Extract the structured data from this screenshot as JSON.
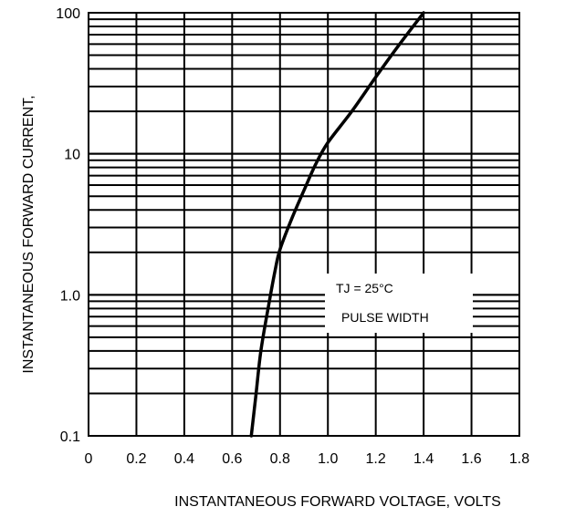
{
  "chart_data": {
    "type": "line",
    "title": "",
    "xlabel": "INSTANTANEOUS FORWARD VOLTAGE, VOLTS",
    "ylabel": "INSTANTANEOUS FORWARD CURRENT,",
    "xlim": [
      0,
      1.8
    ],
    "ylim": [
      0.1,
      100
    ],
    "y_scale": "log",
    "grid": true,
    "x_ticks": [
      {
        "value": 0,
        "label": "0"
      },
      {
        "value": 0.2,
        "label": "0.2"
      },
      {
        "value": 0.4,
        "label": "0.4"
      },
      {
        "value": 0.6,
        "label": "0.6"
      },
      {
        "value": 0.8,
        "label": "0.8"
      },
      {
        "value": 1.0,
        "label": "1.0"
      },
      {
        "value": 1.2,
        "label": "1.2"
      },
      {
        "value": 1.4,
        "label": "1.4"
      },
      {
        "value": 1.6,
        "label": "1.6"
      },
      {
        "value": 1.8,
        "label": "1.8"
      }
    ],
    "y_ticks": [
      {
        "value": 0.1,
        "label": "0.1"
      },
      {
        "value": 1,
        "label": "1.0"
      },
      {
        "value": 10,
        "label": "10"
      },
      {
        "value": 100,
        "label": "100"
      }
    ],
    "series": [
      {
        "color": "#000000",
        "x": [
          0.68,
          0.7,
          0.72,
          0.75,
          0.78,
          0.8,
          0.85,
          0.9,
          0.95,
          1.0,
          1.1,
          1.2,
          1.3,
          1.4
        ],
        "y": [
          0.1,
          0.2,
          0.4,
          0.8,
          1.5,
          2.1,
          3.5,
          5.5,
          8.5,
          12,
          20,
          35,
          60,
          100
        ]
      }
    ],
    "annotations": [
      "TJ = 25°C",
      "PULSE WIDTH"
    ]
  }
}
